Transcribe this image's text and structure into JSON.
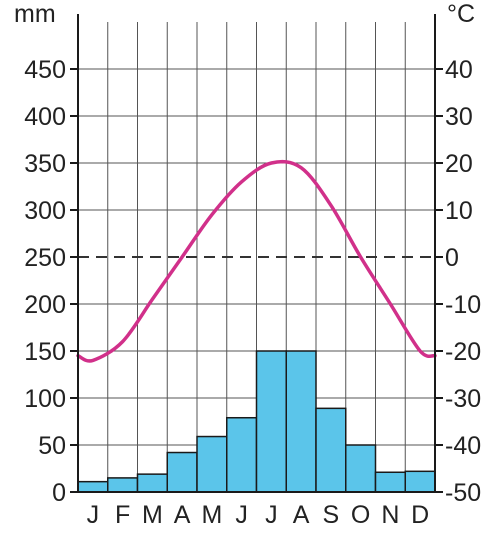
{
  "chart_data": {
    "type": "bar",
    "title": "",
    "months": [
      "J",
      "F",
      "M",
      "A",
      "M",
      "J",
      "J",
      "A",
      "S",
      "O",
      "N",
      "D"
    ],
    "precipitation": {
      "unit_label": "mm",
      "values": [
        11,
        15,
        19,
        42,
        59,
        79,
        150,
        150,
        89,
        50,
        21,
        22
      ],
      "ylim": [
        0,
        500
      ],
      "ticks": [
        "0",
        "50",
        "100",
        "150",
        "200",
        "250",
        "300",
        "350",
        "400",
        "450"
      ],
      "bar_color": "#5bc5ea"
    },
    "temperature": {
      "unit_label": "°C",
      "values": [
        -22,
        -18,
        -9,
        0,
        9,
        16,
        20,
        19,
        11,
        0,
        -10,
        -20
      ],
      "ylim": [
        -50,
        50
      ],
      "ticks": [
        "-50",
        "-40",
        "-30",
        "-20",
        "-10",
        "0",
        "10",
        "20",
        "30",
        "40"
      ],
      "line_color": "#d1308a"
    },
    "zero_reference": {
      "style": "dashed",
      "at_mm": 250,
      "at_c": 0
    },
    "grid": true
  }
}
